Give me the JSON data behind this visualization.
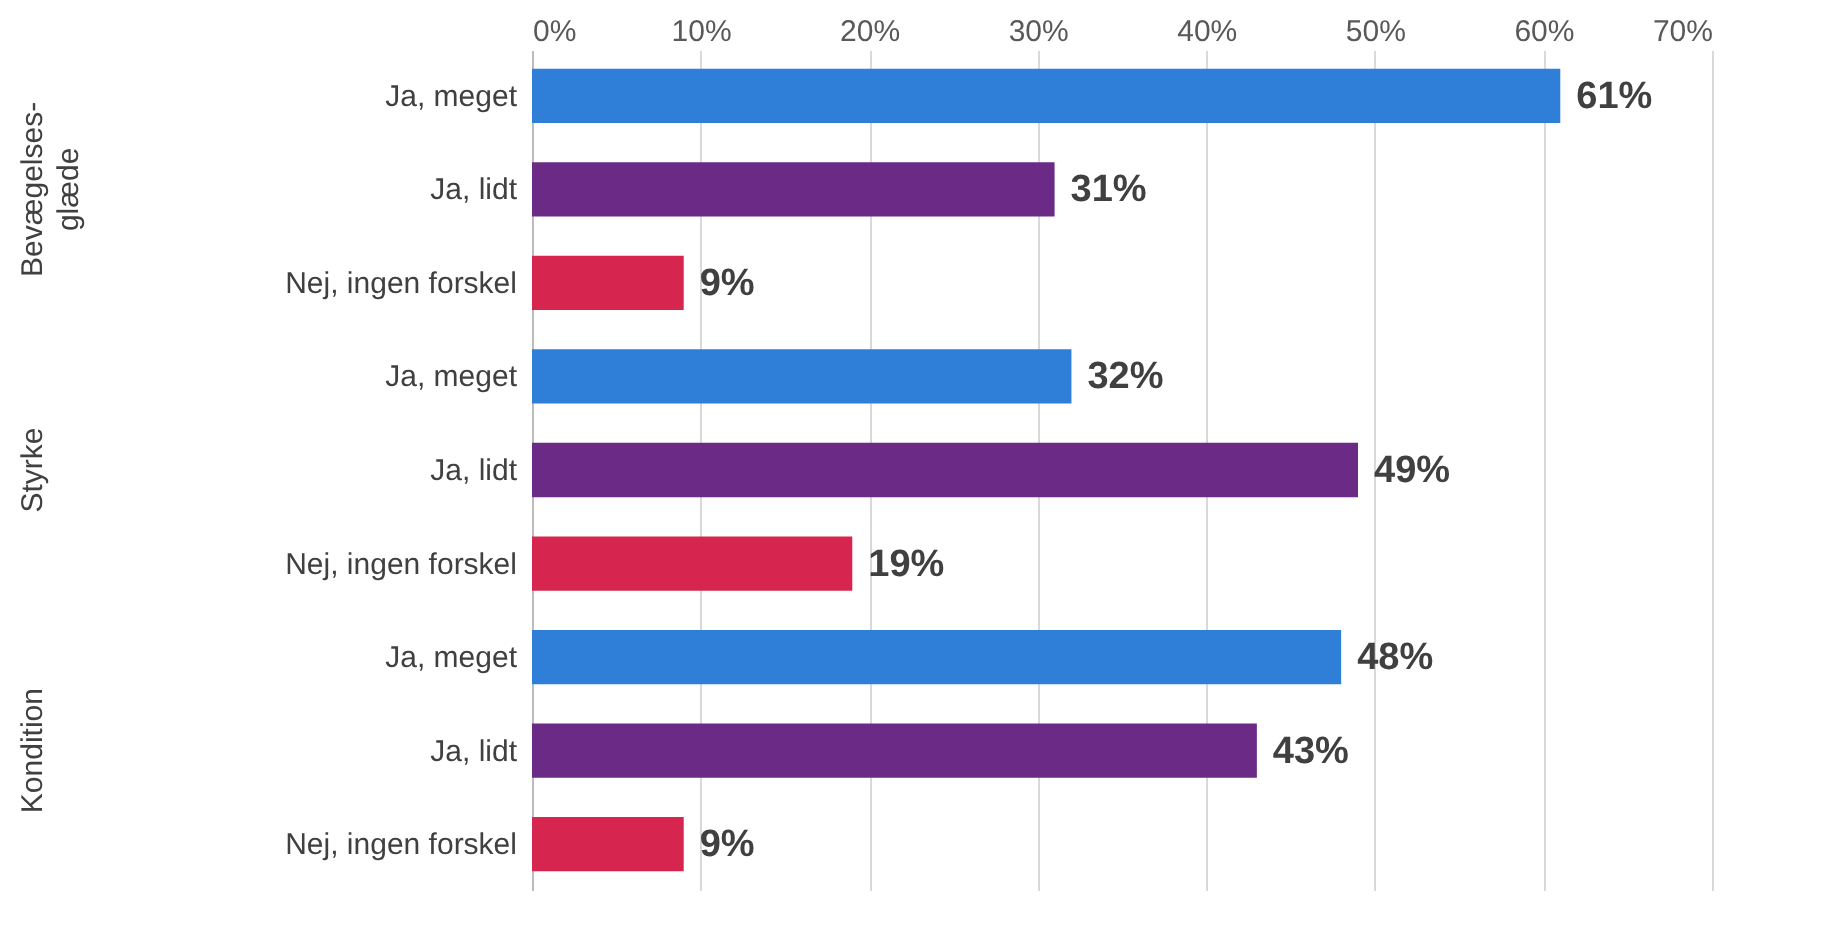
{
  "chart_data": {
    "type": "bar",
    "orientation": "horizontal",
    "categories": [
      "Ja, meget",
      "Ja, lidt",
      "Nej, ingen forskel",
      "Ja, meget",
      "Ja, lidt",
      "Nej, ingen forskel",
      "Ja, meget",
      "Ja, lidt",
      "Nej, ingen forskel"
    ],
    "values": [
      61,
      31,
      9,
      32,
      49,
      19,
      48,
      43,
      9
    ],
    "colors": [
      "#2f7ed8",
      "#6a2a86",
      "#d6264f",
      "#2f7ed8",
      "#6a2a86",
      "#d6264f",
      "#2f7ed8",
      "#6a2a86",
      "#d6264f"
    ],
    "value_labels": [
      "61%",
      "31%",
      "9%",
      "32%",
      "49%",
      "19%",
      "48%",
      "43%",
      "9%"
    ],
    "xlim": [
      0,
      70
    ],
    "xticks": [
      {
        "value": 0,
        "label": "0%"
      },
      {
        "value": 10,
        "label": "10%"
      },
      {
        "value": 20,
        "label": "20%"
      },
      {
        "value": 30,
        "label": "30%"
      },
      {
        "value": 40,
        "label": "40%"
      },
      {
        "value": 50,
        "label": "50%"
      },
      {
        "value": 60,
        "label": "60%"
      },
      {
        "value": 70,
        "label": "70%"
      }
    ],
    "grid": "x",
    "annotations": [
      "Bevægelses-glæde",
      "Styrke",
      "Kondition"
    ]
  }
}
